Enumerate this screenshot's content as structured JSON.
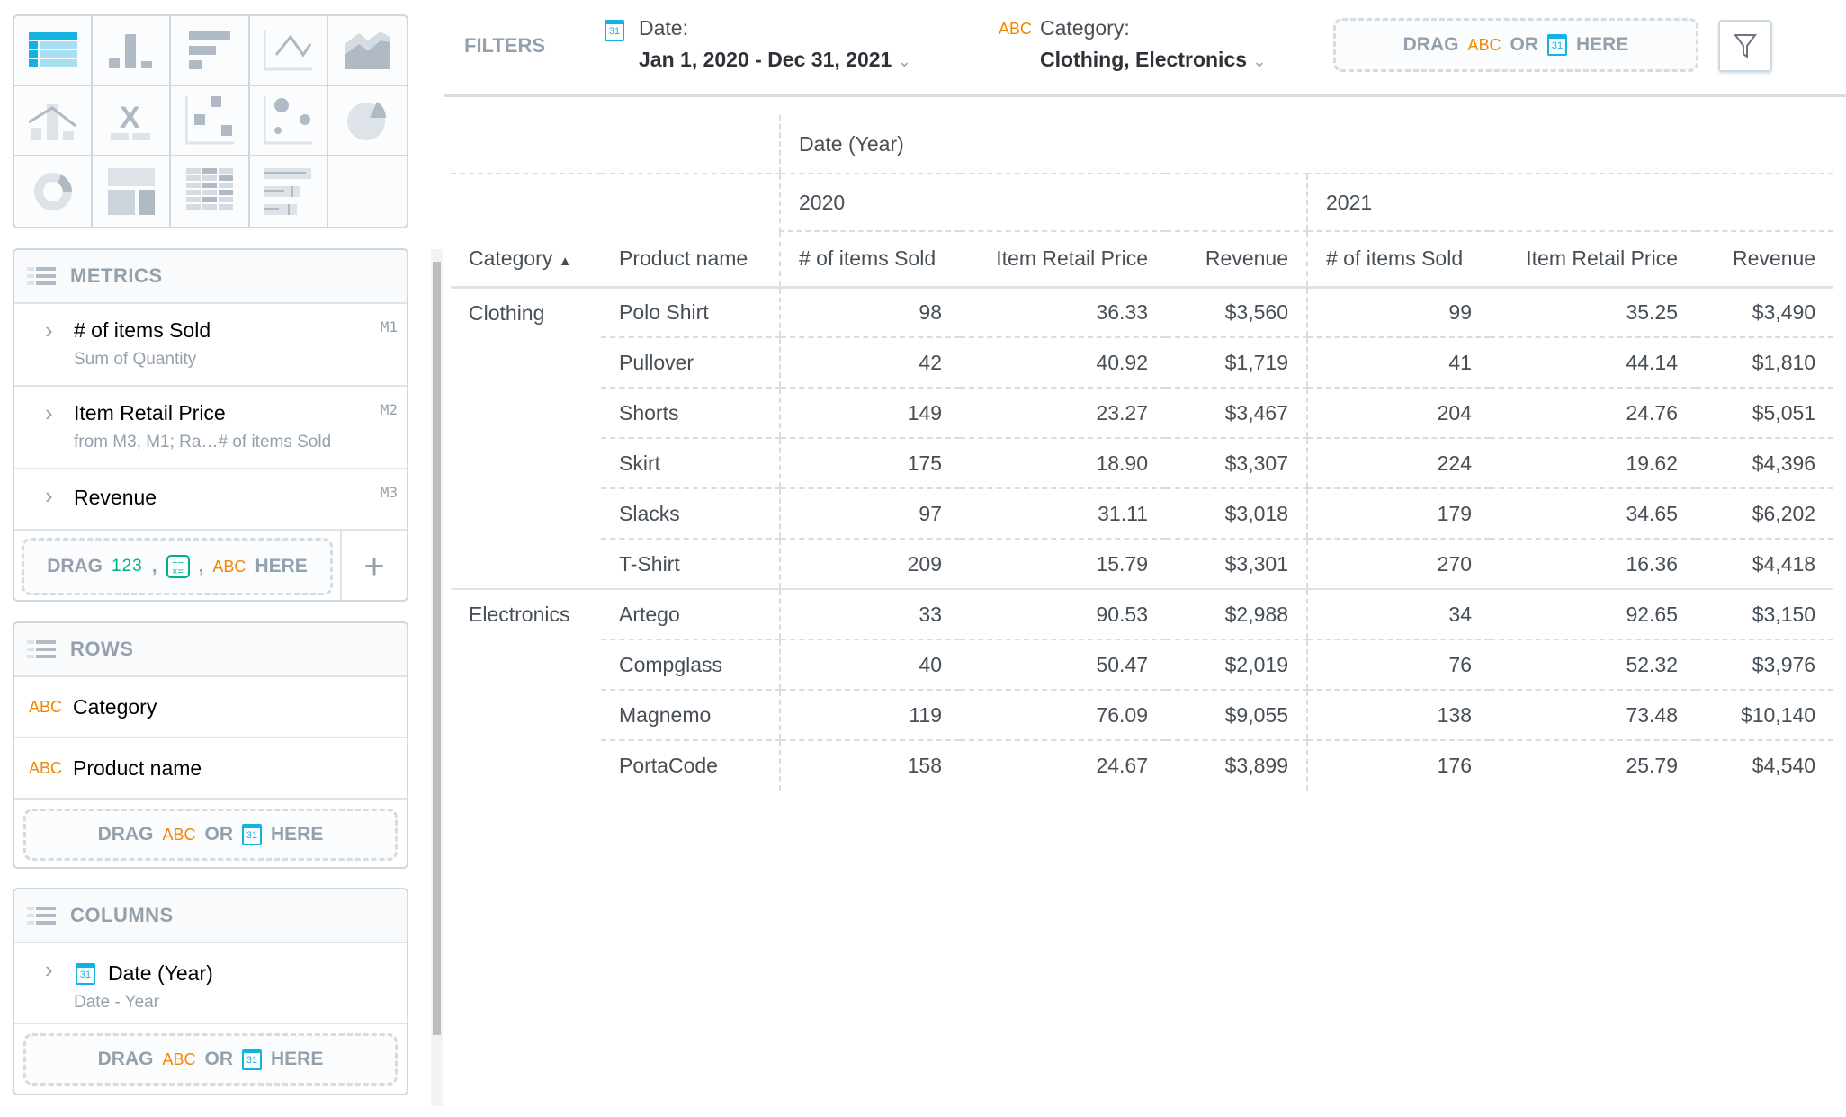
{
  "chart_picker": {
    "icons": [
      "table-icon",
      "column-chart-icon",
      "bar-chart-icon",
      "line-chart-icon",
      "area-chart-icon",
      "combo-chart-icon",
      "headline-icon",
      "scatter-plot-icon",
      "bubble-chart-icon",
      "pie-chart-icon",
      "donut-chart-icon",
      "treemap-icon",
      "heatmap-icon",
      "bullet-chart-icon"
    ],
    "selected": "table-icon"
  },
  "metrics": {
    "title": "METRICS",
    "items": [
      {
        "label": "# of items Sold",
        "sub": "Sum of Quantity",
        "id": "M1"
      },
      {
        "label": "Item Retail Price",
        "sub": "from M3, M1; Ra…# of items Sold",
        "id": "M2"
      },
      {
        "label": "Revenue",
        "sub": "",
        "id": "M3"
      }
    ],
    "drop": {
      "drag": "DRAG",
      "num": "123",
      "comma": ",",
      "abc": "ABC",
      "here": "HERE"
    }
  },
  "rows": {
    "title": "ROWS",
    "items": [
      {
        "type": "ABC",
        "label": "Category"
      },
      {
        "type": "ABC",
        "label": "Product name"
      }
    ],
    "drop": {
      "drag": "DRAG",
      "abc": "ABC",
      "or": "OR",
      "here": "HERE"
    }
  },
  "columns": {
    "title": "COLUMNS",
    "items": [
      {
        "label": "Date (Year)",
        "sub": "Date - Year"
      }
    ],
    "drop": {
      "drag": "DRAG",
      "abc": "ABC",
      "or": "OR",
      "here": "HERE"
    }
  },
  "filters": {
    "title": "FILTERS",
    "date": {
      "label": "Date:",
      "value": "Jan 1, 2020 - Dec 31, 2021"
    },
    "category": {
      "type": "ABC",
      "label": "Category:",
      "value": "Clothing, Electronics"
    },
    "drop": {
      "drag": "DRAG",
      "abc": "ABC",
      "or": "OR",
      "here": "HERE"
    },
    "cal_day": "31"
  },
  "colors": {
    "accent": "#14b2e2",
    "abc": "#f18600",
    "numeric": "#00b08b"
  },
  "table": {
    "column_attr": "Date (Year)",
    "years": [
      "2020",
      "2021"
    ],
    "headers": {
      "category": "Category",
      "product": "Product name",
      "metrics": [
        "# of items Sold",
        "Item Retail Price",
        "Revenue"
      ]
    },
    "sort": "ascending",
    "groups": [
      {
        "category": "Clothing",
        "rows": [
          [
            "Polo Shirt",
            "98",
            "36.33",
            "$3,560",
            "99",
            "35.25",
            "$3,490"
          ],
          [
            "Pullover",
            "42",
            "40.92",
            "$1,719",
            "41",
            "44.14",
            "$1,810"
          ],
          [
            "Shorts",
            "149",
            "23.27",
            "$3,467",
            "204",
            "24.76",
            "$5,051"
          ],
          [
            "Skirt",
            "175",
            "18.90",
            "$3,307",
            "224",
            "19.62",
            "$4,396"
          ],
          [
            "Slacks",
            "97",
            "31.11",
            "$3,018",
            "179",
            "34.65",
            "$6,202"
          ],
          [
            "T-Shirt",
            "209",
            "15.79",
            "$3,301",
            "270",
            "16.36",
            "$4,418"
          ]
        ]
      },
      {
        "category": "Electronics",
        "rows": [
          [
            "Artego",
            "33",
            "90.53",
            "$2,988",
            "34",
            "92.65",
            "$3,150"
          ],
          [
            "Compglass",
            "40",
            "50.47",
            "$2,019",
            "76",
            "52.32",
            "$3,976"
          ],
          [
            "Magnemo",
            "119",
            "76.09",
            "$9,055",
            "138",
            "73.48",
            "$10,140"
          ],
          [
            "PortaCode",
            "158",
            "24.67",
            "$3,899",
            "176",
            "25.79",
            "$4,540"
          ]
        ]
      }
    ]
  }
}
